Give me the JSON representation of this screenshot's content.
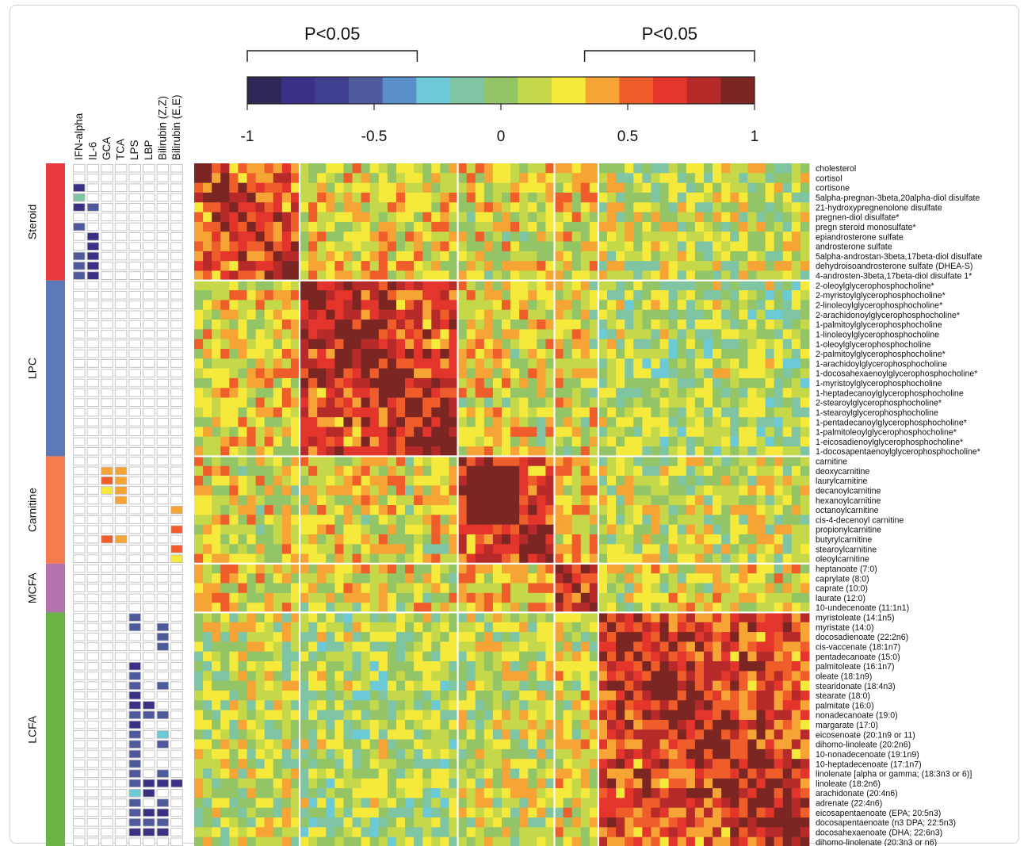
{
  "chart_data": {
    "type": "heatmap",
    "color_scale": {
      "range": [
        -1,
        1
      ],
      "tick_labels": [
        "-1",
        "-0.5",
        "0",
        "0.5",
        "1"
      ],
      "tick_values": [
        -1,
        -0.5,
        0,
        0.5,
        1
      ],
      "colors": [
        "#2e2758",
        "#3a3186",
        "#403f8f",
        "#4f5a9d",
        "#5b8fcb",
        "#6ccad6",
        "#7fc5a3",
        "#93c466",
        "#c5d84a",
        "#f5e93c",
        "#f5a435",
        "#ef5e2a",
        "#e3352c",
        "#b72a2a",
        "#7c2623"
      ],
      "significance_brackets": [
        {
          "label": "P<0.05",
          "from": -1,
          "to": -0.33
        },
        {
          "label": "P<0.05",
          "from": 0.33,
          "to": 1
        }
      ]
    },
    "metabolites": [
      "cholesterol",
      "cortisol",
      "cortisone",
      "5alpha-pregnan-3beta,20alpha-diol disulfate",
      "21-hydroxypregnenolone disulfate",
      "pregnen-diol disulfate*",
      "pregn steroid monosulfate*",
      "epiandrosterone sulfate",
      "androsterone sulfate",
      "5alpha-androstan-3beta,17beta-diol disulfate",
      "dehydroisoandrosterone sulfate (DHEA-S)",
      "4-androsten-3beta,17beta-diol disulfate 1*",
      "2-oleoylglycerophosphocholine*",
      "2-myristoylglycerophosphocholine*",
      "2-linoleoylglycerophosphocholine*",
      "2-arachidonoylglycerophosphocholine*",
      "1-palmitoylglycerophosphocholine",
      "1-linoleoylglycerophosphocholine",
      "1-oleoylglycerophosphocholine",
      "2-palmitoylglycerophosphocholine*",
      "1-arachidoylglycerophosphocholine",
      "1-docosahexaenoylglycerophosphocholine*",
      "1-myristoylglycerophosphocholine",
      "1-heptadecanoylglycerophosphocholine",
      "2-stearoylglycerophosphocholine*",
      "1-stearoylglycerophosphocholine",
      "1-pentadecanoylglycerophosphocholine*",
      "1-palmitoleoylglycerophosphocholine*",
      "1-eicosadienoylglycerophosphocholine*",
      "1-docosapentaenoylglycerophosphocholine*",
      "carnitine",
      "deoxycarnitine",
      "laurylcarnitine",
      "decanoylcarnitine",
      "hexanoylcarnitine",
      "octanoylcarnitine",
      "cis-4-decenoyl carnitine",
      "propionylcarnitine",
      "butyrylcarnitine",
      "stearoylcarnitine",
      "oleoylcarnitine",
      "heptanoate (7:0)",
      "caprylate (8:0)",
      "caprate (10:0)",
      "laurate (12:0)",
      "10-undecenoate (11:1n1)",
      "myristoleate (14:1n5)",
      "myristate (14:0)",
      "docosadienoate (22:2n6)",
      "cis-vaccenate (18:1n7)",
      "pentadecanoate (15:0)",
      "palmitoleate (16:1n7)",
      "oleate (18:1n9)",
      "stearidonate (18:4n3)",
      "stearate (18:0)",
      "palmitate (16:0)",
      "nonadecanoate (19:0)",
      "margarate (17:0)",
      "eicosenoate (20:1n9 or 11)",
      "dihomo-linoleate (20:2n6)",
      "10-nonadecenoate (19:1n9)",
      "10-heptadecenoate (17:1n7)",
      "linolenate [alpha or gamma; (18:3n3 or 6)]",
      "linoleate (18:2n6)",
      "arachidonate (20:4n6)",
      "adrenate (22:4n6)",
      "eicosapentaenoate (EPA; 20:5n3)",
      "docosapentaenoate (n3 DPA; 22:5n3)",
      "docosahexaenoate (DHA; 22:6n3)",
      "dihomo-linolenate (20:3n3 or n6)"
    ],
    "groups": [
      {
        "label": "Steroid",
        "count": 12,
        "color": "#e8393f"
      },
      {
        "label": "LPC",
        "count": 18,
        "color": "#5b79b9"
      },
      {
        "label": "Carnitine",
        "count": 11,
        "color": "#f47c4f"
      },
      {
        "label": "MCFA",
        "count": 5,
        "color": "#b373ad"
      },
      {
        "label": "LCFA",
        "count": 24,
        "color": "#6ab446"
      }
    ],
    "covariates": [
      "IFN-alpha",
      "IL-6",
      "GCA",
      "TCA",
      "LPS",
      "LBP",
      "Bilirubin (Z,Z)",
      "Bilirubin (E,E)"
    ],
    "covariate_significant_cells": [
      [
        2,
        0,
        -0.8
      ],
      [
        3,
        0,
        -0.2
      ],
      [
        4,
        0,
        -0.8
      ],
      [
        4,
        1,
        -0.5
      ],
      [
        6,
        0,
        -0.5
      ],
      [
        7,
        1,
        -0.8
      ],
      [
        8,
        1,
        -0.8
      ],
      [
        9,
        0,
        -0.5
      ],
      [
        9,
        1,
        -0.8
      ],
      [
        10,
        0,
        -0.5
      ],
      [
        10,
        1,
        -0.8
      ],
      [
        11,
        0,
        -0.5
      ],
      [
        11,
        1,
        -0.8
      ],
      [
        31,
        2,
        0.4
      ],
      [
        31,
        3,
        0.4
      ],
      [
        32,
        2,
        0.5
      ],
      [
        32,
        3,
        0.4
      ],
      [
        33,
        2,
        0.2
      ],
      [
        33,
        3,
        0.4
      ],
      [
        34,
        3,
        0.4
      ],
      [
        35,
        7,
        0.4
      ],
      [
        37,
        7,
        0.5
      ],
      [
        38,
        2,
        0.5
      ],
      [
        38,
        3,
        0.4
      ],
      [
        39,
        7,
        0.5
      ],
      [
        40,
        7,
        0.2
      ],
      [
        46,
        4,
        -0.5
      ],
      [
        47,
        4,
        -0.5
      ],
      [
        47,
        6,
        -0.5
      ],
      [
        48,
        6,
        -0.5
      ],
      [
        49,
        6,
        -0.5
      ],
      [
        51,
        4,
        -0.8
      ],
      [
        52,
        4,
        -0.5
      ],
      [
        53,
        4,
        -0.5
      ],
      [
        53,
        6,
        -0.5
      ],
      [
        54,
        4,
        -0.8
      ],
      [
        55,
        4,
        -0.8
      ],
      [
        55,
        5,
        -0.8
      ],
      [
        56,
        4,
        -0.5
      ],
      [
        56,
        5,
        -0.5
      ],
      [
        56,
        6,
        -0.5
      ],
      [
        57,
        4,
        -0.8
      ],
      [
        58,
        4,
        -0.5
      ],
      [
        58,
        6,
        -0.3
      ],
      [
        59,
        4,
        -0.5
      ],
      [
        59,
        6,
        -0.5
      ],
      [
        60,
        4,
        -0.5
      ],
      [
        61,
        4,
        -0.5
      ],
      [
        62,
        4,
        -0.5
      ],
      [
        62,
        6,
        -0.5
      ],
      [
        63,
        4,
        -0.5
      ],
      [
        63,
        5,
        -0.8
      ],
      [
        63,
        6,
        -0.8
      ],
      [
        63,
        7,
        -0.8
      ],
      [
        64,
        4,
        -0.3
      ],
      [
        64,
        5,
        -0.8
      ],
      [
        65,
        4,
        -0.5
      ],
      [
        65,
        6,
        -0.5
      ],
      [
        66,
        4,
        -0.5
      ],
      [
        66,
        5,
        -0.8
      ],
      [
        66,
        6,
        -0.8
      ],
      [
        67,
        4,
        -0.5
      ],
      [
        67,
        5,
        -0.5
      ],
      [
        67,
        6,
        -0.5
      ],
      [
        68,
        4,
        -0.8
      ],
      [
        68,
        5,
        -0.8
      ],
      [
        68,
        6,
        -0.8
      ]
    ],
    "within_group_mean_correlation": {
      "Steroid": 0.48,
      "LPC": 0.6,
      "Carnitine": 0.52,
      "MCFA": 0.42,
      "LCFA": 0.6
    },
    "between_group_mean_correlation": [
      [
        "Steroid",
        "LPC",
        0.25
      ],
      [
        "Steroid",
        "Carnitine",
        0.22
      ],
      [
        "Steroid",
        "MCFA",
        0.25
      ],
      [
        "Steroid",
        "LCFA",
        0.12
      ],
      [
        "LPC",
        "Carnitine",
        0.22
      ],
      [
        "LPC",
        "MCFA",
        0.2
      ],
      [
        "LPC",
        "LCFA",
        0.05
      ],
      [
        "Carnitine",
        "MCFA",
        0.28
      ],
      [
        "Carnitine",
        "LCFA",
        0.15
      ],
      [
        "MCFA",
        "LCFA",
        0.2
      ]
    ],
    "special_blocks": [
      {
        "rows": [
          31,
          36
        ],
        "cols": [
          31,
          36
        ],
        "value": 1.0
      }
    ]
  }
}
